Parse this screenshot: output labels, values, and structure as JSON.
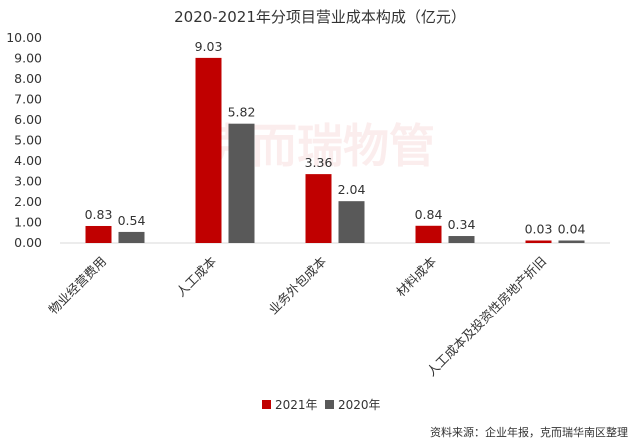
{
  "chart_data": {
    "type": "bar",
    "title": "2020-2021年分项目营业成本构成（亿元）",
    "categories": [
      "物业经营费用",
      "人工成本",
      "业务外包成本",
      "材料成本",
      "人工成本及投资性房地产折旧"
    ],
    "series": [
      {
        "name": "2021年",
        "color": "#C00000",
        "values": [
          0.83,
          9.03,
          3.36,
          0.84,
          0.03
        ],
        "labels": [
          "0.83",
          "9.03",
          "3.36",
          "0.84",
          "0.03"
        ]
      },
      {
        "name": "2020年",
        "color": "#595959",
        "values": [
          0.54,
          5.82,
          2.04,
          0.34,
          0.04
        ],
        "labels": [
          "0.54",
          "5.82",
          "2.04",
          "0.34",
          "0.04"
        ]
      }
    ],
    "ylim": [
      0,
      10
    ],
    "yticks": [
      "0.00",
      "1.00",
      "2.00",
      "3.00",
      "4.00",
      "5.00",
      "6.00",
      "7.00",
      "8.00",
      "9.00",
      "10.00"
    ],
    "xlabel": "",
    "ylabel": "",
    "grid": false,
    "legend": "bottom-center"
  },
  "watermark": "克而瑞物管",
  "source_note": "资料来源：企业年报，克而瑞华南区整理"
}
